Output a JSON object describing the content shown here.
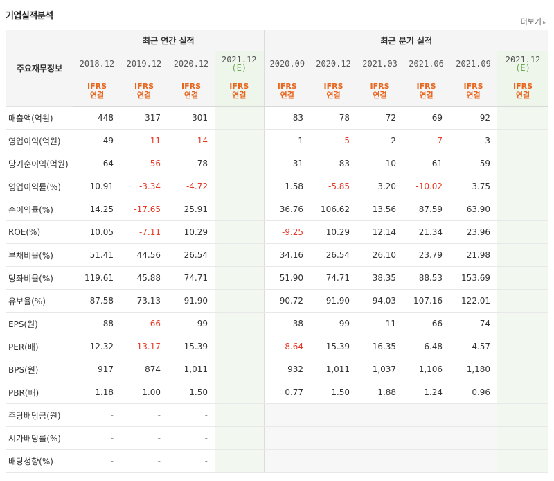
{
  "header": {
    "title": "기업실적분석",
    "more_label": "더보기",
    "more_arrow": "▸"
  },
  "table": {
    "row_header": "주요재무정보",
    "groups": [
      {
        "label": "최근 연간 실적"
      },
      {
        "label": "최근 분기 실적"
      }
    ],
    "periods": [
      "2018.12",
      "2019.12",
      "2020.12",
      "2021.12",
      "2020.09",
      "2020.12",
      "2021.03",
      "2021.06",
      "2021.09",
      "2021.12"
    ],
    "estimate_mark": "(E)",
    "basis_line1": "IFRS",
    "basis_line2": "연결",
    "rows": [
      {
        "label": "매출액(억원)",
        "values": [
          "448",
          "317",
          "301",
          "",
          "83",
          "78",
          "72",
          "69",
          "92",
          ""
        ]
      },
      {
        "label": "영업이익(억원)",
        "values": [
          "49",
          "-11",
          "-14",
          "",
          "1",
          "-5",
          "2",
          "-7",
          "3",
          ""
        ]
      },
      {
        "label": "당기순이익(억원)",
        "values": [
          "64",
          "-56",
          "78",
          "",
          "31",
          "83",
          "10",
          "61",
          "59",
          ""
        ]
      },
      {
        "label": "영업이익률(%)",
        "values": [
          "10.91",
          "-3.34",
          "-4.72",
          "",
          "1.58",
          "-5.85",
          "3.20",
          "-10.02",
          "3.75",
          ""
        ]
      },
      {
        "label": "순이익률(%)",
        "values": [
          "14.25",
          "-17.65",
          "25.91",
          "",
          "36.76",
          "106.62",
          "13.56",
          "87.59",
          "63.90",
          ""
        ]
      },
      {
        "label": "ROE(%)",
        "values": [
          "10.05",
          "-7.11",
          "10.29",
          "",
          "-9.25",
          "10.29",
          "12.14",
          "21.34",
          "23.96",
          ""
        ]
      },
      {
        "label": "부채비율(%)",
        "values": [
          "51.41",
          "44.56",
          "26.54",
          "",
          "34.16",
          "26.54",
          "26.10",
          "23.79",
          "21.98",
          ""
        ]
      },
      {
        "label": "당좌비율(%)",
        "values": [
          "119.61",
          "45.88",
          "74.71",
          "",
          "51.90",
          "74.71",
          "38.35",
          "88.53",
          "153.69",
          ""
        ]
      },
      {
        "label": "유보율(%)",
        "values": [
          "87.58",
          "73.13",
          "91.90",
          "",
          "90.72",
          "91.90",
          "94.03",
          "107.16",
          "122.01",
          ""
        ]
      },
      {
        "label": "EPS(원)",
        "values": [
          "88",
          "-66",
          "99",
          "",
          "38",
          "99",
          "11",
          "66",
          "74",
          ""
        ]
      },
      {
        "label": "PER(배)",
        "values": [
          "12.32",
          "-13.17",
          "15.39",
          "",
          "-8.64",
          "15.39",
          "16.35",
          "6.48",
          "4.57",
          ""
        ]
      },
      {
        "label": "BPS(원)",
        "values": [
          "917",
          "874",
          "1,011",
          "",
          "932",
          "1,011",
          "1,037",
          "1,106",
          "1,180",
          ""
        ]
      },
      {
        "label": "PBR(배)",
        "values": [
          "1.18",
          "1.00",
          "1.50",
          "",
          "0.77",
          "1.50",
          "1.88",
          "1.24",
          "0.96",
          ""
        ]
      },
      {
        "label": "주당배당금(원)",
        "values": [
          "-",
          "-",
          "-",
          "",
          "",
          "",
          "",
          "",
          "",
          ""
        ]
      },
      {
        "label": "시가배당률(%)",
        "values": [
          "-",
          "-",
          "-",
          "",
          "",
          "",
          "",
          "",
          "",
          ""
        ]
      },
      {
        "label": "배당성향(%)",
        "values": [
          "-",
          "-",
          "-",
          "",
          "",
          "",
          "",
          "",
          "",
          ""
        ]
      }
    ],
    "colors": {
      "negative": "#e53a27",
      "basis": "#e8651d",
      "estimate_bg": "#f2f8f0"
    }
  }
}
